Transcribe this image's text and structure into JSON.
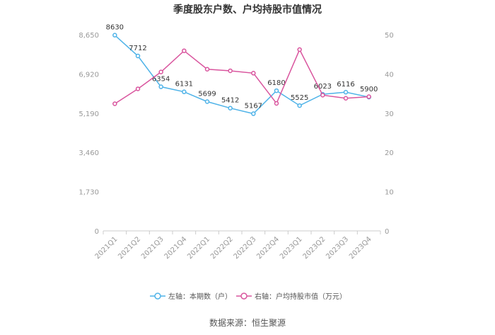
{
  "chart_data": {
    "type": "line",
    "title": "季度股东户数、户均持股市值情况",
    "categories": [
      "2021Q1",
      "2021Q2",
      "2021Q3",
      "2021Q4",
      "2022Q1",
      "2022Q2",
      "2022Q3",
      "2022Q4",
      "2023Q1",
      "2023Q2",
      "2023Q3",
      "2023Q4"
    ],
    "left_axis": {
      "ticks": [
        "0",
        "1,730",
        "3,460",
        "5,190",
        "6,920",
        "8,650"
      ],
      "ylim": [
        0,
        8650
      ]
    },
    "right_axis": {
      "ticks": [
        "0",
        "10",
        "20",
        "30",
        "40",
        "50"
      ],
      "ylim": [
        0,
        50
      ]
    },
    "series": [
      {
        "name": "左轴：本期数（户）",
        "axis": "left",
        "color": "#4fb3e8",
        "values": [
          8630,
          7712,
          6354,
          6131,
          5699,
          5412,
          5167,
          6180,
          5525,
          6023,
          6116,
          5900
        ],
        "labels": [
          "8630",
          "7712",
          "6354",
          "6131",
          "5699",
          "5412",
          "5167",
          "6180",
          "5525",
          "6023",
          "6116",
          "5900"
        ]
      },
      {
        "name": "右轴：户均持股市值（万元）",
        "axis": "right",
        "color": "#d9559e",
        "values": [
          32.4,
          36.2,
          40.5,
          45.9,
          41.2,
          40.8,
          40.2,
          32.5,
          46.2,
          34.6,
          33.8,
          34.2
        ]
      }
    ],
    "grid": false,
    "legend_position": "bottom"
  },
  "source": "数据来源：恒生聚源"
}
